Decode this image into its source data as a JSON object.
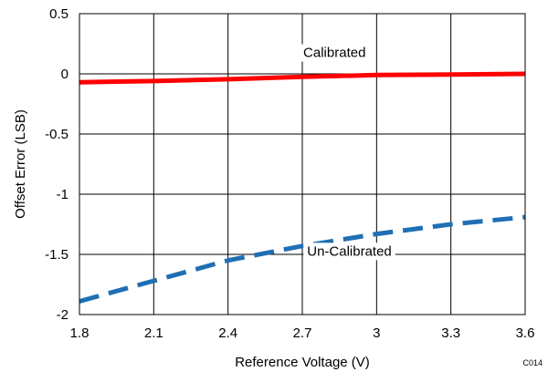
{
  "chart_data": {
    "type": "line",
    "xlabel": "Reference Voltage (V)",
    "ylabel": "Offset Error (LSB)",
    "xlim": [
      1.8,
      3.6
    ],
    "ylim": [
      -2,
      0.5
    ],
    "x_ticks": [
      "1.8",
      "2.1",
      "2.4",
      "2.7",
      "3",
      "3.3",
      "3.6"
    ],
    "y_ticks": [
      "0.5",
      "0",
      "-0.5",
      "-1",
      "-1.5",
      "-2"
    ],
    "grid": true,
    "legend": "none",
    "code": "C014",
    "series": [
      {
        "name": "Calibrated",
        "style": "solid",
        "color": "#ff0000",
        "x": [
          1.8,
          2.1,
          2.4,
          2.7,
          3.0,
          3.3,
          3.6
        ],
        "values": [
          -0.07,
          -0.06,
          -0.045,
          -0.025,
          -0.01,
          -0.005,
          0.0
        ]
      },
      {
        "name": "Un-Calibrated",
        "style": "dashed",
        "color": "#1f6fb4",
        "x": [
          1.8,
          2.1,
          2.4,
          2.7,
          3.0,
          3.3,
          3.6
        ],
        "values": [
          -1.89,
          -1.72,
          -1.55,
          -1.43,
          -1.33,
          -1.25,
          -1.19
        ]
      }
    ],
    "annotations": [
      {
        "text": "Calibrated",
        "x": 2.83,
        "y": 0.14
      },
      {
        "text": "Un-Calibrated",
        "x": 2.89,
        "y": -1.51
      }
    ]
  }
}
